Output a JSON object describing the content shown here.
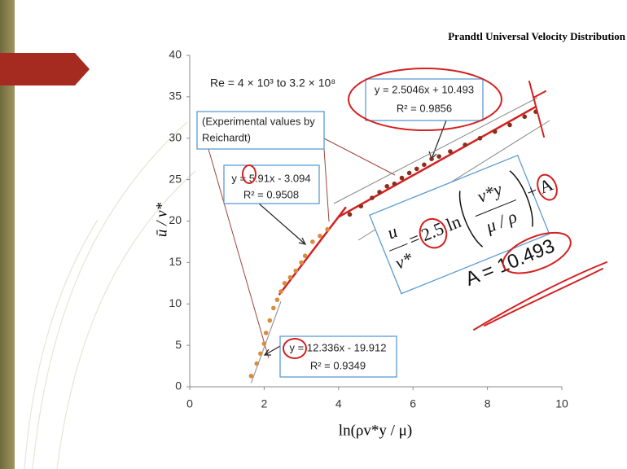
{
  "title": "Prandtl Universal Velocity Distribution",
  "chart_data": {
    "type": "scatter",
    "xlabel": "ln(ρv*y / μ)",
    "ylabel": "ū / v*",
    "xlim": [
      0,
      10
    ],
    "ylim": [
      0,
      40
    ],
    "xticks": [
      0,
      2,
      4,
      6,
      8,
      10
    ],
    "yticks": [
      0,
      5,
      10,
      15,
      20,
      25,
      30,
      35,
      40
    ],
    "series": [
      {
        "color": "#d98c3f",
        "x": [
          1.65,
          1.8,
          1.9,
          2.0,
          2.05,
          2.15,
          2.25,
          2.35,
          2.45,
          2.55,
          2.7,
          2.85,
          3.0,
          3.1,
          3.3,
          3.5,
          3.7
        ],
        "y": [
          1.3,
          2.8,
          4.0,
          5.2,
          6.5,
          8.0,
          9.5,
          10.5,
          11.5,
          12.5,
          13.2,
          14.0,
          15.0,
          15.8,
          17.5,
          18.2,
          19.0
        ]
      },
      {
        "color": "#8b2e1e",
        "x": [
          4.3,
          4.6,
          4.9,
          5.1,
          5.3,
          5.5,
          5.7,
          5.9,
          6.1,
          6.3,
          6.5,
          6.7,
          7.0,
          7.4,
          7.8,
          8.2,
          8.6,
          9.0,
          9.3
        ],
        "y": [
          20.8,
          21.8,
          22.8,
          23.5,
          24.2,
          24.5,
          25.2,
          25.8,
          26.3,
          26.8,
          27.5,
          27.8,
          28.4,
          29.2,
          30.0,
          30.8,
          31.6,
          32.6,
          33.2
        ]
      }
    ],
    "fits": [
      {
        "color": "#999999",
        "x": [
          1.65,
          2.45
        ],
        "y": [
          0.44,
          10.3
        ]
      },
      {
        "color": "#d42020",
        "x": [
          2.4,
          4.2
        ],
        "y": [
          11.09,
          21.7
        ]
      },
      {
        "color": "#d42020",
        "x": [
          4.0,
          9.3
        ],
        "y": [
          20.5,
          33.8
        ]
      }
    ],
    "annotations": {
      "re": "Re = 4 × 10³ to 3.2 × 10⁸",
      "fit3_eq": "y = 2.5046x + 10.493",
      "fit3_r2": "R² = 0.9856",
      "experimental": [
        "(Experimental values by",
        "Reichardt)"
      ],
      "fit2_eq": "y = 5.91x - 3.094",
      "fit2_r2": "R² = 0.9508",
      "fit1_eq": "y = 12.336x - 19.912",
      "fit1_r2": "R² = 0.9349"
    }
  },
  "equation": {
    "lhs_num": "u",
    "lhs_den": "v*",
    "equals": "=",
    "coef": "2.5",
    "ln": "ln",
    "arg_num": "v*y",
    "arg_den": "μ / ρ",
    "plus": "+ A",
    "result": "A = 10.493"
  }
}
